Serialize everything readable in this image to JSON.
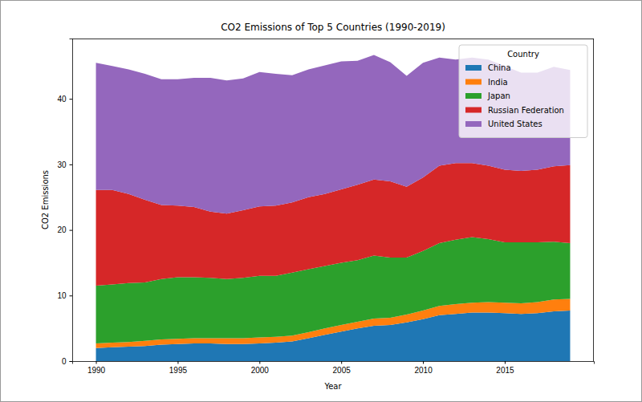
{
  "chart_data": {
    "type": "area",
    "stacked": true,
    "title": "CO2 Emissions of Top 5 Countries (1990-2019)",
    "x_label": "Year",
    "y_label": "CO2 Emissions",
    "legend_title": "Country",
    "legend": "upper right",
    "x": [
      1990,
      1991,
      1992,
      1993,
      1994,
      1995,
      1996,
      1997,
      1998,
      1999,
      2000,
      2001,
      2002,
      2003,
      2004,
      2005,
      2006,
      2007,
      2008,
      2009,
      2010,
      2011,
      2012,
      2013,
      2014,
      2015,
      2016,
      2017,
      2018,
      2019
    ],
    "series": [
      {
        "name": "China",
        "color": "#1f77b4",
        "values": [
          2.0,
          2.1,
          2.2,
          2.3,
          2.5,
          2.6,
          2.7,
          2.7,
          2.6,
          2.6,
          2.7,
          2.8,
          3.0,
          3.5,
          4.0,
          4.5,
          5.0,
          5.4,
          5.5,
          5.9,
          6.4,
          7.0,
          7.2,
          7.4,
          7.4,
          7.3,
          7.2,
          7.3,
          7.6,
          7.7
        ]
      },
      {
        "name": "India",
        "color": "#ff7f0e",
        "values": [
          0.7,
          0.7,
          0.7,
          0.8,
          0.8,
          0.8,
          0.8,
          0.8,
          0.9,
          0.9,
          0.9,
          0.9,
          0.9,
          0.9,
          1.0,
          1.0,
          1.0,
          1.1,
          1.1,
          1.2,
          1.3,
          1.4,
          1.5,
          1.5,
          1.6,
          1.6,
          1.6,
          1.7,
          1.8,
          1.8
        ]
      },
      {
        "name": "Japan",
        "color": "#2ca02c",
        "values": [
          8.8,
          8.9,
          9.0,
          8.9,
          9.2,
          9.4,
          9.3,
          9.2,
          9.0,
          9.2,
          9.4,
          9.3,
          9.6,
          9.6,
          9.5,
          9.5,
          9.4,
          9.6,
          9.2,
          8.7,
          9.1,
          9.6,
          9.8,
          10.0,
          9.6,
          9.2,
          9.3,
          9.1,
          8.8,
          8.5
        ]
      },
      {
        "name": "Russian Federation",
        "color": "#d62728",
        "values": [
          14.6,
          14.4,
          13.6,
          12.6,
          11.3,
          10.9,
          10.7,
          10.1,
          10.0,
          10.3,
          10.6,
          10.7,
          10.7,
          11.0,
          11.0,
          11.2,
          11.5,
          11.6,
          11.6,
          10.8,
          11.2,
          11.8,
          11.7,
          11.3,
          11.2,
          11.1,
          10.9,
          11.1,
          11.5,
          11.9
        ]
      },
      {
        "name": "United States",
        "color": "#9467bd",
        "values": [
          19.4,
          18.9,
          19.0,
          19.2,
          19.2,
          19.3,
          19.7,
          20.4,
          20.3,
          20.1,
          20.5,
          20.1,
          19.4,
          19.5,
          19.6,
          19.5,
          18.9,
          19.0,
          18.2,
          16.9,
          17.5,
          16.5,
          15.8,
          16.1,
          16.2,
          15.8,
          15.0,
          14.8,
          15.2,
          14.5
        ]
      }
    ],
    "xlim": [
      1988.55,
      2020.45
    ],
    "xticks": [
      1990,
      1995,
      2000,
      2005,
      2010,
      2015
    ],
    "ylim": [
      0,
      49.2
    ],
    "yticks": [
      0,
      10,
      20,
      30,
      40
    ]
  }
}
